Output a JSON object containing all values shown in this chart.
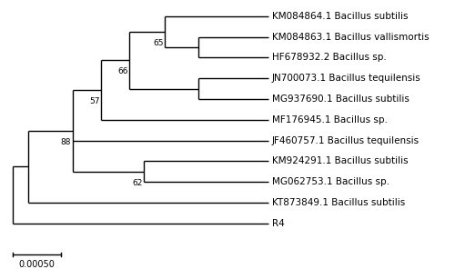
{
  "taxa_order_top_to_bottom": [
    "KM084864.1 Bacillus subtilis",
    "KM084863.1 Bacillus vallismortis",
    "HF678932.2 Bacillus sp.",
    "JN700073.1 Bacillus tequilensis",
    "MG937690.1 Bacillus subtilis",
    "MF176945.1 Bacillus sp.",
    "JF460757.1 Bacillus tequilensis",
    "KM924291.1 Bacillus subtilis",
    "MG062753.1 Bacillus sp.",
    "KT873849.1 Bacillus subtilis",
    "R4"
  ],
  "scale_bar_value": "0.00050",
  "background_color": "#ffffff",
  "line_color": "#000000",
  "text_color": "#000000",
  "font_size_taxa": 7.5,
  "font_size_bootstrap": 6.5,
  "font_size_scale": 7.0,
  "line_width": 1.0,
  "fig_width": 5.0,
  "fig_height": 3.07,
  "dpi": 100,
  "note": "Phylogenetic tree topology: ((KM084864,(KM084863,HF678932)65,(JN700073,MG937690))66,MF176945)57,(JF460757,(KM924291,MG062753)62)88)n1,KT873849)root,R4"
}
